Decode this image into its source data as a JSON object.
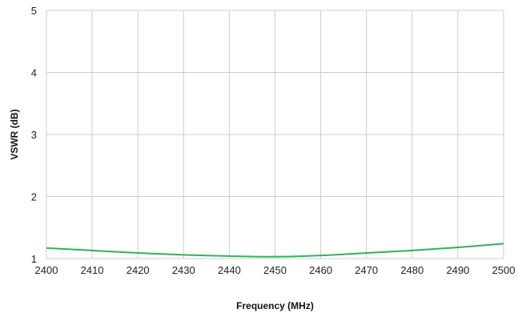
{
  "chart_data": {
    "type": "line",
    "title": "",
    "xlabel": "Frequency (MHz)",
    "ylabel": "VSWR (dB)",
    "xlim": [
      2400,
      2500
    ],
    "ylim": [
      1,
      5
    ],
    "xticks": [
      2400,
      2410,
      2420,
      2430,
      2440,
      2450,
      2460,
      2470,
      2480,
      2490,
      2500
    ],
    "yticks": [
      1,
      2,
      3,
      4,
      5
    ],
    "grid": true,
    "legend": "none",
    "series": [
      {
        "color": "#2db45a",
        "x": [
          2400,
          2410,
          2420,
          2430,
          2440,
          2450,
          2460,
          2470,
          2480,
          2490,
          2500
        ],
        "y": [
          1.17,
          1.13,
          1.09,
          1.06,
          1.04,
          1.03,
          1.05,
          1.09,
          1.13,
          1.18,
          1.24
        ]
      }
    ]
  }
}
